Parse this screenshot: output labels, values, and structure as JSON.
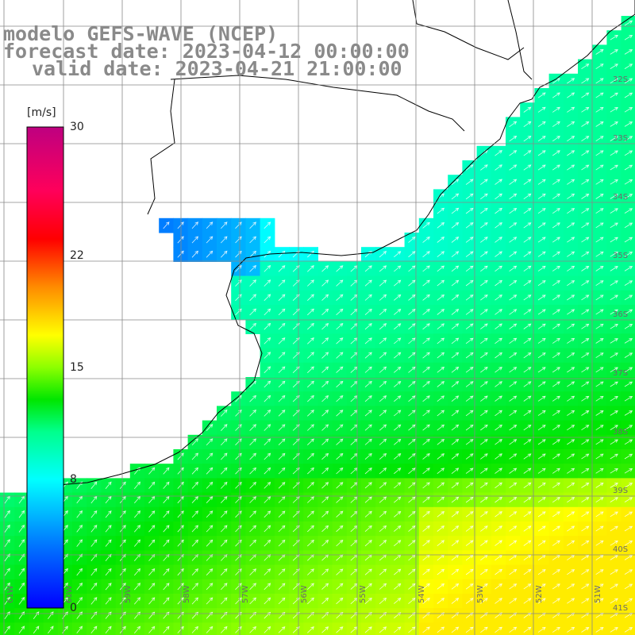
{
  "title": {
    "line1": "modelo GEFS-WAVE (NCEP)",
    "line2": "forecast date: 2023-04-12 00:00:00",
    "line3": "valid date: 2023-04-21 21:00:00"
  },
  "colorbar": {
    "unit": "[m/s]",
    "ticks": [
      {
        "value": 0,
        "label": "0"
      },
      {
        "value": 8,
        "label": "8"
      },
      {
        "value": 15,
        "label": "15"
      },
      {
        "value": 22,
        "label": "22"
      },
      {
        "value": 30,
        "label": "30"
      }
    ],
    "range": [
      0,
      30
    ],
    "colors": [
      "#0000ff",
      "#00a0ff",
      "#00ffff",
      "#00ff66",
      "#00e000",
      "#80ff00",
      "#ffff00",
      "#ff8000",
      "#ff0000",
      "#ff0060",
      "#c00080"
    ]
  },
  "lat_labels": [
    "32S",
    "33S",
    "34S",
    "35S",
    "36S",
    "37S",
    "38S",
    "39S",
    "40S",
    "41S"
  ],
  "lon_labels": [
    "61W",
    "60W",
    "59W",
    "58W",
    "57W",
    "56W",
    "55W",
    "54W",
    "53W",
    "52W",
    "51W"
  ],
  "ocean_color": "#ffffff",
  "land_color": "#ffffff",
  "arrow_color": "#ffffff"
}
